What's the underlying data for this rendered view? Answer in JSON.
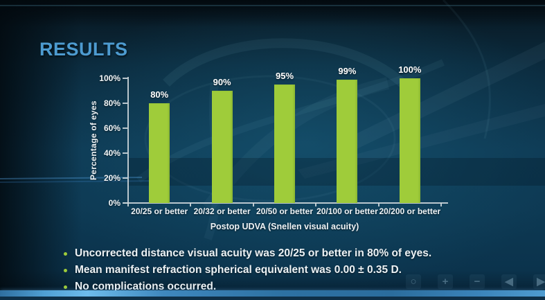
{
  "slide": {
    "title": "RESULTS",
    "bullets": [
      "Uncorrected distance visual acuity was 20/25 or better in 80% of eyes.",
      "Mean manifest refraction spherical equivalent was 0.00 ± 0.35 D.",
      "No complications occurred."
    ],
    "colors": {
      "accent_green": "#9fcc3a",
      "title_blue": "#4d9bd0",
      "axis_gray": "#cdd6da",
      "text_white": "#ecf2f5",
      "background_navy": "#0d3a52",
      "bottom_band_blue": "#4f9fd3"
    }
  },
  "chart_data": {
    "type": "bar",
    "title": "",
    "categories": [
      "20/25 or better",
      "20/32 or better",
      "20/50 or better",
      "20/100 or better",
      "20/200 or better"
    ],
    "values": [
      80,
      90,
      95,
      99,
      100
    ],
    "value_labels": [
      "80%",
      "90%",
      "95%",
      "99%",
      "100%"
    ],
    "xlabel": "Postop UDVA (Snellen visual acuity)",
    "ylabel": "Percentage of eyes",
    "yticks": [
      {
        "label": "100%",
        "value": 100
      },
      {
        "label": "80%",
        "value": 80
      },
      {
        "label": "60%",
        "value": 60
      },
      {
        "label": "40%",
        "value": 40
      },
      {
        "label": "20%",
        "value": 20
      },
      {
        "label": "0%",
        "value": 0
      }
    ],
    "ylim": [
      0,
      100
    ],
    "grid": false,
    "legend": false,
    "bar_color": "#9fcc3a"
  },
  "overlay_controls": [
    {
      "name": "record-circle-icon",
      "glyph": "○"
    },
    {
      "name": "zoom-in-button",
      "glyph": "+"
    },
    {
      "name": "zoom-out-button",
      "glyph": "−"
    },
    {
      "name": "previous-button",
      "glyph": "◀"
    },
    {
      "name": "next-button",
      "glyph": "▶"
    }
  ]
}
